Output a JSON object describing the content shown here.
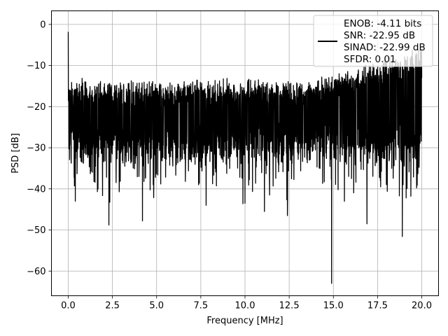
{
  "chart_data": {
    "type": "line",
    "title": "",
    "xlabel": "Frequency [MHz]",
    "ylabel": "PSD [dB]",
    "xlim": [
      -0.95,
      20.95
    ],
    "ylim": [
      -66,
      3.3
    ],
    "xticks": [
      0,
      2.5,
      5,
      7.5,
      10,
      12.5,
      15,
      17.5,
      20
    ],
    "xtick_labels": [
      "0.0",
      "2.5",
      "5.0",
      "7.5",
      "10.0",
      "12.5",
      "15.0",
      "17.5",
      "20.0"
    ],
    "yticks": [
      0,
      -10,
      -20,
      -30,
      -40,
      -50,
      -60
    ],
    "ytick_labels": [
      "0",
      "−10",
      "−20",
      "−30",
      "−40",
      "−50",
      "−60"
    ],
    "grid": true,
    "legend_position": "top-right",
    "line_color": "#000000",
    "series": [
      {
        "name": "",
        "description_envelope": {
          "x_start": 0,
          "x_end": 20,
          "peak_at_dc": -1.8,
          "typical_upper": -15,
          "typical_lower": -32,
          "rising_upper_toward": -7
        },
        "notable_points": [
          {
            "x": 0.0,
            "y": -1.8
          },
          {
            "x": 0.4,
            "y": -43
          },
          {
            "x": 2.3,
            "y": -48.8
          },
          {
            "x": 4.2,
            "y": -47.8
          },
          {
            "x": 7.8,
            "y": -44
          },
          {
            "x": 10.0,
            "y": -43.5
          },
          {
            "x": 11.1,
            "y": -45.5
          },
          {
            "x": 12.4,
            "y": -46.5
          },
          {
            "x": 14.9,
            "y": -63
          },
          {
            "x": 16.9,
            "y": -48.5
          },
          {
            "x": 18.9,
            "y": -51.6
          },
          {
            "x": 20.0,
            "y": -13
          }
        ]
      }
    ],
    "legend": {
      "lines": [
        "ENOB: -4.11 bits",
        "SNR: -22.95 dB",
        "SINAD: -22.99 dB",
        "SFDR: 0.01"
      ]
    }
  }
}
